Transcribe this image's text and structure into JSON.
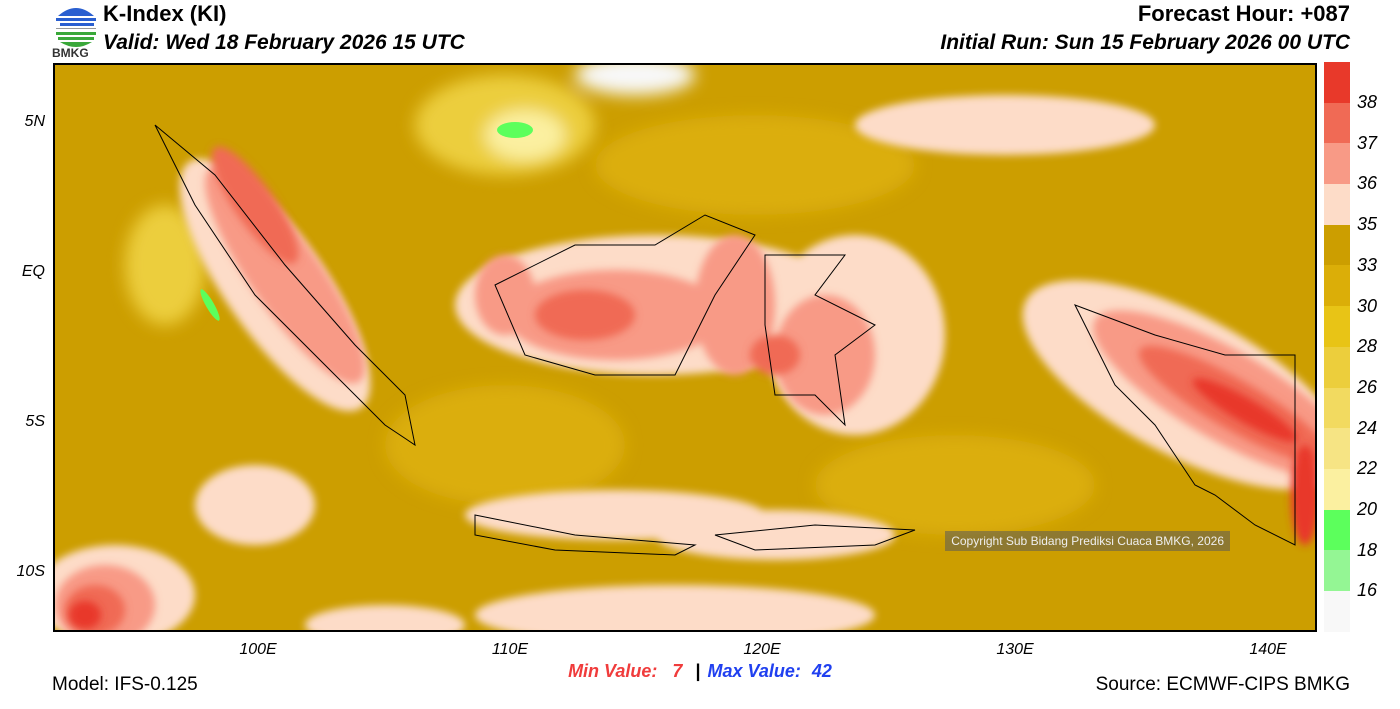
{
  "header": {
    "title": "K-Index (KI)",
    "valid": "Valid: Wed 18 February 2026 15 UTC",
    "forecast_hour": "Forecast Hour: +087",
    "initial_run": "Initial Run: Sun 15 February 2026 00 UTC",
    "logo_text": "BMKG"
  },
  "map": {
    "lat_labels": [
      "5N",
      "EQ",
      "5S",
      "10S"
    ],
    "lon_labels": [
      "100E",
      "110E",
      "120E",
      "130E",
      "140E"
    ],
    "copyright": "Copyright Sub Bidang Prediksi Cuaca BMKG, 2026"
  },
  "colorbar": {
    "labels": [
      "38",
      "37",
      "36",
      "35",
      "33",
      "30",
      "28",
      "26",
      "24",
      "22",
      "20",
      "18",
      "16"
    ],
    "colors": [
      "#e8392a",
      "#f06a55",
      "#f89a86",
      "#fddcc8",
      "#cc9e00",
      "#dbae08",
      "#e8c416",
      "#ecce3c",
      "#f2da60",
      "#f6e484",
      "#fbf0a0",
      "#5cff5c",
      "#94f694",
      "#f8f8f8"
    ]
  },
  "stats": {
    "min_label": "Min Value:",
    "min_value": "7",
    "separator": "|",
    "max_label": "Max Value:",
    "max_value": "42"
  },
  "footer": {
    "model": "Model: IFS-0.125",
    "source": "Source: ECMWF-CIPS BMKG"
  }
}
